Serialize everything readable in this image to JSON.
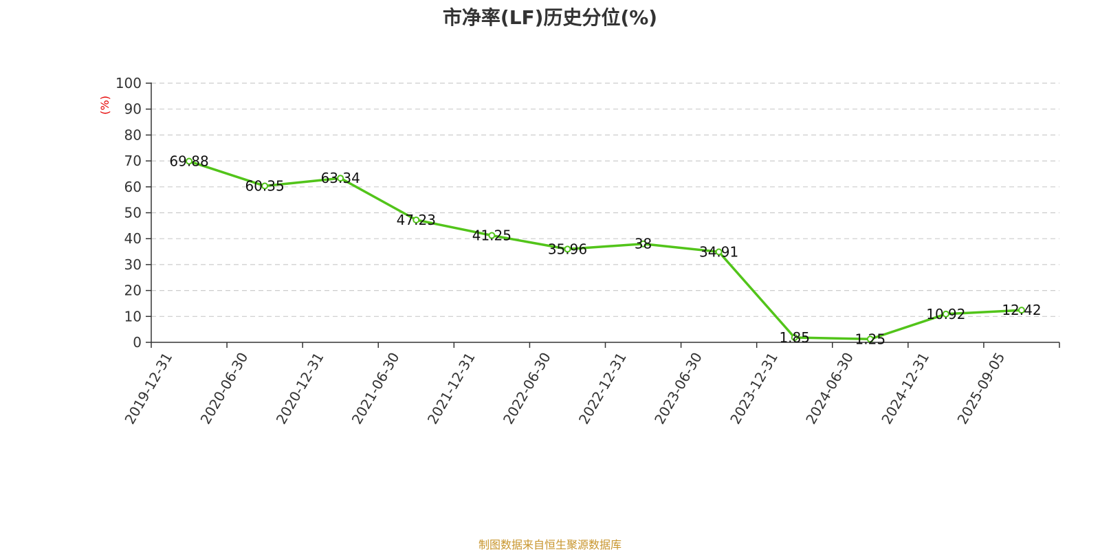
{
  "chart_data": {
    "type": "line",
    "title": "市净率(LF)历史分位(%)",
    "ylabel": "(%)",
    "ylim": [
      0,
      100
    ],
    "yticks": [
      0,
      10,
      20,
      30,
      40,
      50,
      60,
      70,
      80,
      90,
      100
    ],
    "grid": true,
    "categories": [
      "2019-12-31",
      "2020-06-30",
      "2020-12-31",
      "2021-06-30",
      "2021-12-31",
      "2022-06-30",
      "2022-12-31",
      "2023-06-30",
      "2023-12-31",
      "2024-06-30",
      "2024-12-31",
      "2025-09-05"
    ],
    "series": [
      {
        "values": [
          69.88,
          60.35,
          63.34,
          47.23,
          41.25,
          35.96,
          38,
          34.91,
          1.85,
          1.25,
          10.92,
          12.42
        ]
      }
    ]
  },
  "colors": {
    "line": "#52c41a",
    "ylabel": "#e60000",
    "footer": "#c8962e",
    "grid": "#cccccc",
    "axis": "#333333"
  },
  "footer": "制图数据来自恒生聚源数据库"
}
